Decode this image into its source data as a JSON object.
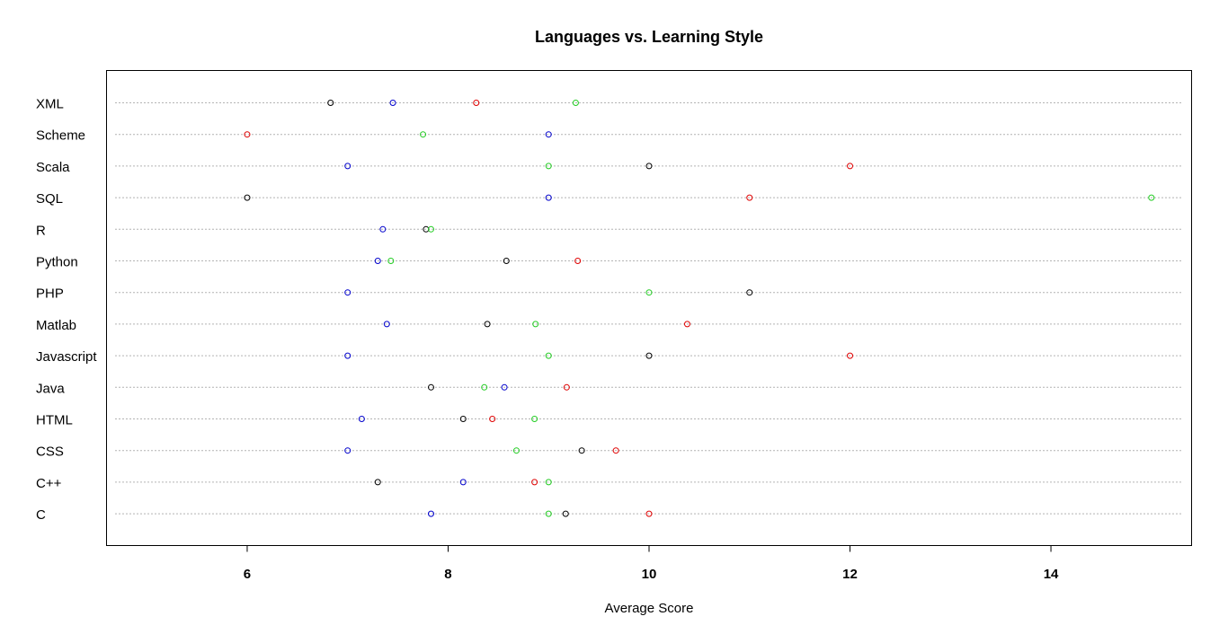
{
  "chart_data": {
    "type": "scatter",
    "subtype": "dotchart",
    "title": "Languages vs. Learning Style",
    "xlabel": "Average Score",
    "ylabel": "",
    "xlim": [
      4.6,
      15.4
    ],
    "xticks": [
      6,
      8,
      10,
      12,
      14
    ],
    "grid": "dotted horizontal lines per category",
    "legend": "none",
    "categories": [
      "XML",
      "Scheme",
      "Scala",
      "SQL",
      "R",
      "Python",
      "PHP",
      "Matlab",
      "Javascript",
      "Java",
      "HTML",
      "CSS",
      "C++",
      "C"
    ],
    "series": [
      {
        "color": "#000000",
        "values": [
          6.83,
          null,
          10.0,
          6.0,
          7.78,
          8.58,
          11.0,
          8.39,
          10.0,
          7.83,
          8.15,
          9.33,
          7.3,
          9.17
        ]
      },
      {
        "color": "#df0000",
        "values": [
          8.28,
          6.0,
          12.0,
          11.0,
          null,
          9.29,
          null,
          10.38,
          12.0,
          9.18,
          8.44,
          9.67,
          8.86,
          10.0
        ]
      },
      {
        "color": "#22cc22",
        "values": [
          9.27,
          7.75,
          9.0,
          15.0,
          7.83,
          7.43,
          10.0,
          8.87,
          9.0,
          8.36,
          8.86,
          8.68,
          9.0,
          9.0
        ]
      },
      {
        "color": "#0000cc",
        "values": [
          7.45,
          9.0,
          7.0,
          9.0,
          7.35,
          7.3,
          7.0,
          7.39,
          7.0,
          8.56,
          7.14,
          7.0,
          8.15,
          7.83
        ]
      }
    ]
  }
}
